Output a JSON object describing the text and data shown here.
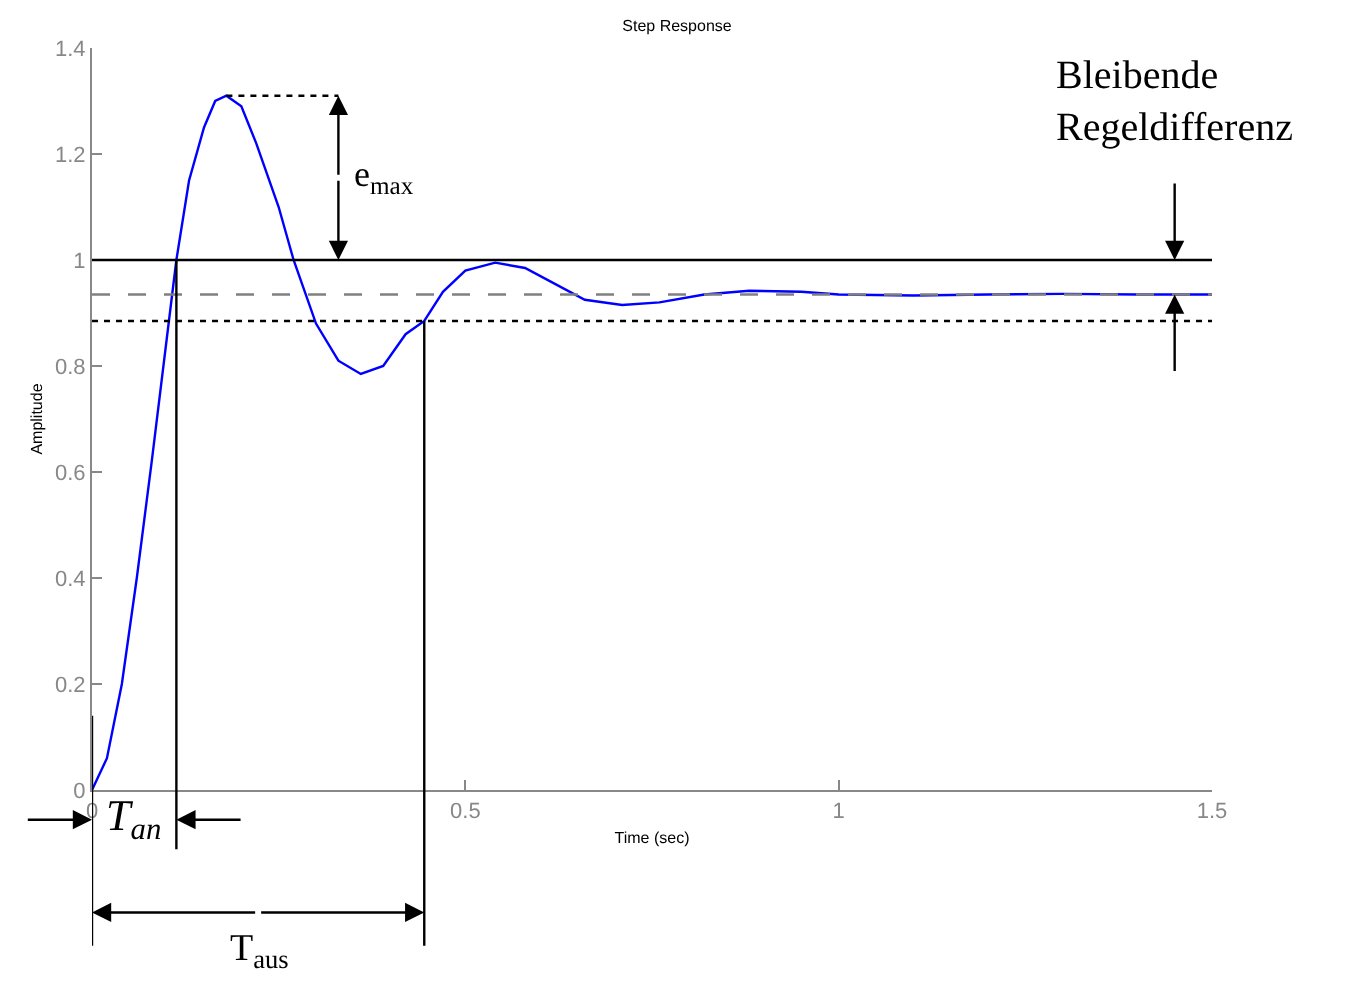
{
  "chart_data": {
    "type": "line",
    "title": "Step Response",
    "xlabel": "Time (sec)",
    "ylabel": "Amplitude",
    "x": [
      0,
      0.02,
      0.04,
      0.06,
      0.08,
      0.1,
      0.113,
      0.13,
      0.15,
      0.165,
      0.18,
      0.2,
      0.22,
      0.25,
      0.27,
      0.3,
      0.33,
      0.36,
      0.39,
      0.42,
      0.445,
      0.47,
      0.5,
      0.54,
      0.58,
      0.62,
      0.66,
      0.71,
      0.76,
      0.82,
      0.88,
      0.95,
      1.0,
      1.1,
      1.2,
      1.3,
      1.4,
      1.5
    ],
    "series": [
      {
        "color": "#0000ff",
        "values": [
          0,
          0.06,
          0.2,
          0.4,
          0.62,
          0.85,
          1.0,
          1.15,
          1.25,
          1.3,
          1.31,
          1.29,
          1.22,
          1.1,
          1.0,
          0.88,
          0.81,
          0.785,
          0.8,
          0.86,
          0.885,
          0.94,
          0.98,
          0.995,
          0.985,
          0.955,
          0.925,
          0.915,
          0.92,
          0.935,
          0.942,
          0.94,
          0.935,
          0.933,
          0.935,
          0.936,
          0.935,
          0.935
        ]
      }
    ],
    "xlim": [
      0,
      1.5
    ],
    "xticks": [
      0,
      0.5,
      1,
      1.5
    ],
    "ylim": [
      0,
      1.4
    ],
    "yticks": [
      0,
      0.2,
      0.4,
      0.6,
      0.8,
      1,
      1.2,
      1.4
    ],
    "ref_lines": [
      {
        "axis": "y",
        "value": 1,
        "color": "#000000",
        "line_style": "solid"
      },
      {
        "axis": "y",
        "value": 0.935,
        "color": "#808080",
        "line_style": "dashed"
      },
      {
        "axis": "y",
        "value": 0.885,
        "color": "#000000",
        "line_style": "dotted"
      },
      {
        "axis": "x",
        "value": 0.113,
        "color": "#000000",
        "line_style": "solid"
      },
      {
        "axis": "x",
        "value": 0.445,
        "color": "#000000",
        "line_style": "solid"
      }
    ],
    "annotations": [
      {
        "text": "e$_{max}$",
        "x": 0.33,
        "y": 1
      },
      "T$_{an}$",
      "T$_{aus}$",
      {
        "text": "Bleibende\nRegeldifferenz",
        "x": 1.45,
        "y": 1
      }
    ],
    "grid": false,
    "legend": false,
    "marker": "none",
    "line_style": "solid"
  }
}
